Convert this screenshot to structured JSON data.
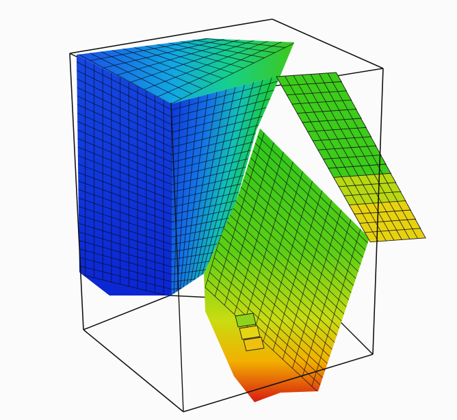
{
  "scene": {
    "kind": "3d-mesh-visualization",
    "background_color": "#fbfbfb",
    "bounding_box_color": "#111111",
    "mesh_line_color": "#1a1a1a",
    "colormap": [
      "#0a1fd8",
      "#1565e8",
      "#10b8d8",
      "#13d36a",
      "#4ad11a",
      "#c8dc10",
      "#f0c000",
      "#e85010",
      "#d41010"
    ]
  }
}
